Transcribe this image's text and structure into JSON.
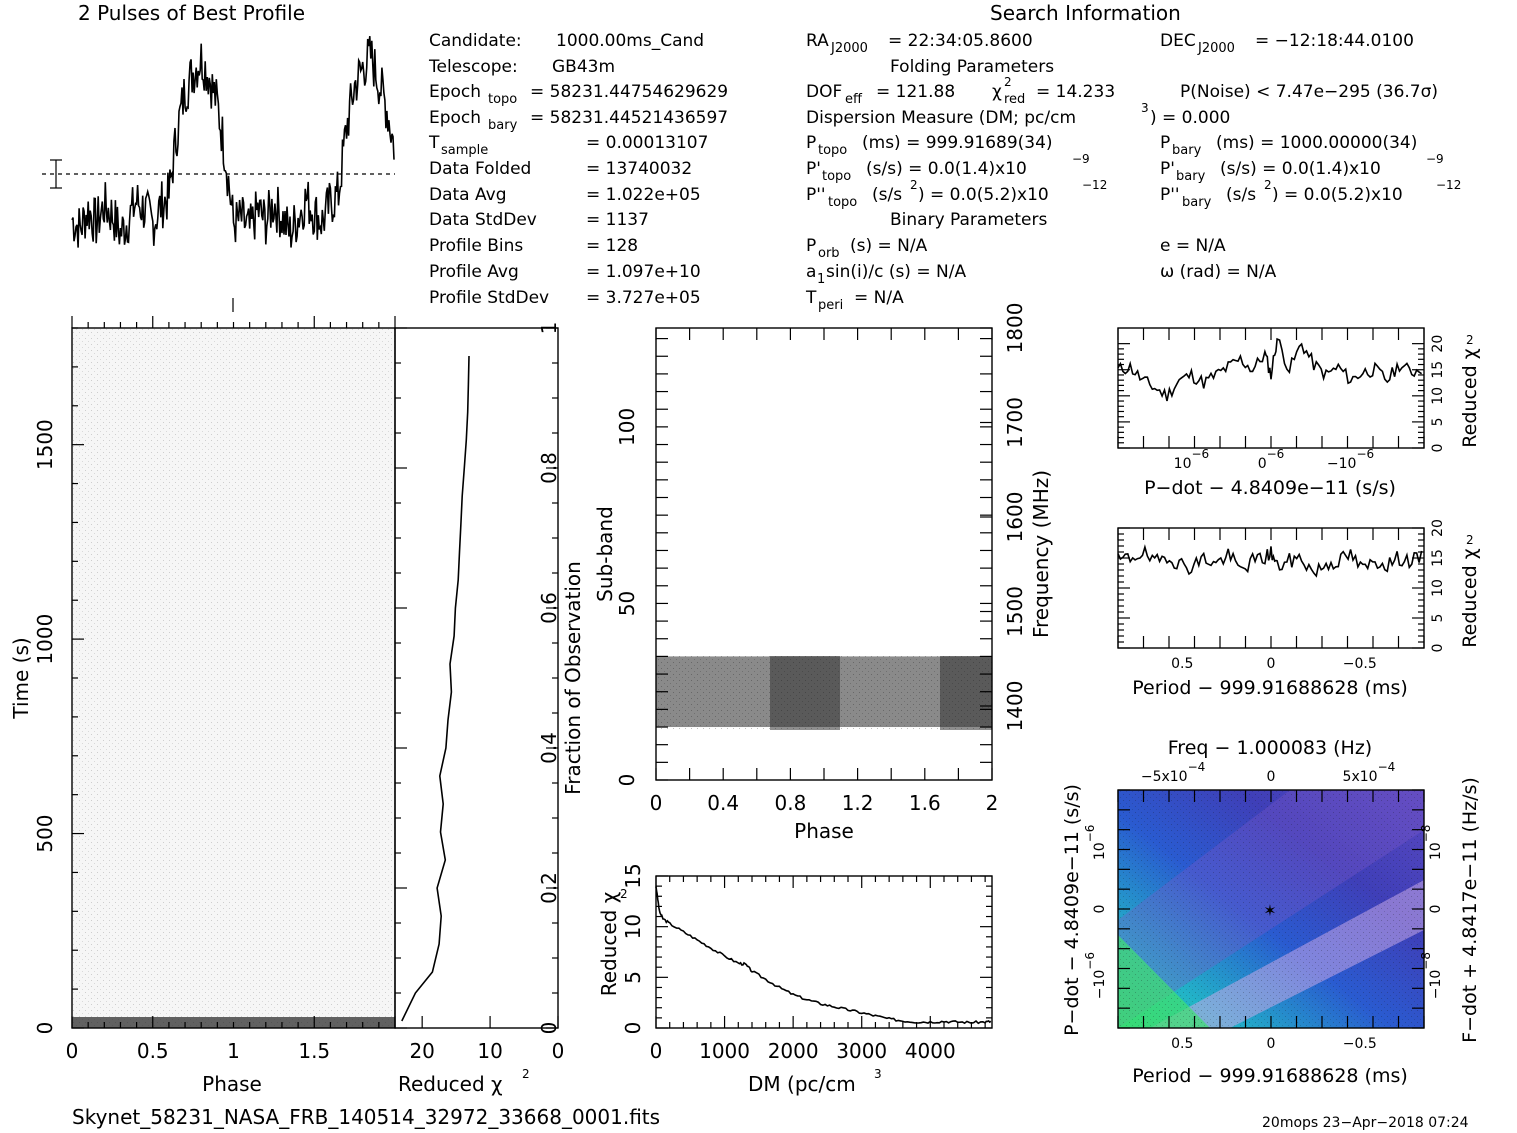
{
  "header": {
    "profile_title": "2 Pulses of Best Profile",
    "search_title": "Search Information",
    "folding_title": "Folding Parameters",
    "binary_title": "Binary Parameters"
  },
  "info": {
    "candidate_label": "Candidate:",
    "candidate": "1000.00ms_Cand",
    "telescope_label": "Telescope:",
    "telescope": "GB43m",
    "epoch_topo_label": "Epoch",
    "epoch_topo_sub": "topo",
    "epoch_topo": "= 58231.44754629629",
    "epoch_bary_label": "Epoch",
    "epoch_bary_sub": "bary",
    "epoch_bary": "= 58231.44521436597",
    "tsample_label": "T",
    "tsample_sub": "sample",
    "tsample": "=   0.00013107",
    "data_folded_label": "Data Folded",
    "data_folded": "=   13740032",
    "data_avg_label": "Data Avg",
    "data_avg": "=   1.022e+05",
    "data_std_label": "Data StdDev",
    "data_std": "=   1137",
    "profile_bins_label": "Profile Bins",
    "profile_bins": "=   128",
    "profile_avg_label": "Profile Avg",
    "profile_avg": "=   1.097e+10",
    "profile_std_label": "Profile StdDev",
    "profile_std": "=   3.727e+05"
  },
  "search": {
    "ra_label": "RA",
    "ra_sub": "J2000",
    "ra": "= 22:34:05.8600",
    "dec_label": "DEC",
    "dec_sub": "J2000",
    "dec": "= −12:18:44.0100",
    "dof_label": "DOF",
    "dof_sub": "eff",
    "dof": "= 121.88",
    "chi_label": "χ",
    "chi_sup": "2",
    "chi_sub": "red",
    "chi": "= 14.233",
    "pnoise": "P(Noise) < 7.47e−295   (36.7σ)",
    "dm": "Dispersion Measure (DM; pc/cm",
    "dm_sup": "3",
    "dm_val": ") = 0.000",
    "ptopo_label": "P",
    "ptopo_sub": "topo",
    "ptopo": "(ms)  =  999.91689(34)",
    "pbary_label": "P",
    "pbary_sub": "bary",
    "pbary": "(ms)  =  1000.00000(34)",
    "pdtopo_label": "P'",
    "pdtopo_sub": "topo",
    "pdtopo": "(s/s) = 0.0(1.4)x10",
    "pdtopo_sup": "−9",
    "pdbary_label": "P'",
    "pdbary_sub": "bary",
    "pdbary": "(s/s) = 0.0(1.4)x10",
    "pdbary_sup": "−9",
    "pddtopo_label": "P''",
    "pddtopo_sub": "topo",
    "pddtopo": "(s/s",
    "pddtopo_sup1": "2",
    "pddtopo_rest": ") = 0.0(5.2)x10",
    "pddtopo_sup2": "−12",
    "pddbary_label": "P''",
    "pddbary_sub": "bary",
    "pddbary": "(s/s",
    "pddbary_sup1": "2",
    "pddbary_rest": ") = 0.0(5.2)x10",
    "pddbary_sup2": "−12",
    "porb_label": "P",
    "porb_sub": "orb",
    "porb": "(s) = N/A",
    "ecc": "e = N/A",
    "a1": "a",
    "a1_sub": "1",
    "a1_rest": "sin(i)/c (s) = N/A",
    "omega": "ω (rad) = N/A",
    "tperi_label": "T",
    "tperi_sub": "peri",
    "tperi": "= N/A"
  },
  "footer": {
    "filename": "Skynet_58231_NASA_FRB_140514_32972_33668_0001.fits",
    "stamp": "20mops 23−Apr−2018 07:24"
  },
  "chart_data": [
    {
      "type": "line",
      "name_on_chart": "2 Pulses of Best Profile",
      "x": [
        0,
        0.05,
        0.1,
        0.15,
        0.2,
        0.25,
        0.3,
        0.35,
        0.4,
        0.45,
        0.5,
        0.55,
        0.6,
        0.65,
        0.7,
        0.75,
        0.8,
        0.85,
        0.9,
        0.95,
        1.0,
        1.05,
        1.1,
        1.15,
        1.2,
        1.25,
        1.3,
        1.35,
        1.4,
        1.45,
        1.5,
        1.55,
        1.6,
        1.65,
        1.7,
        1.75,
        1.8,
        1.85,
        1.9,
        1.95,
        2.0
      ],
      "y": [
        0.22,
        0.18,
        0.26,
        0.2,
        0.28,
        0.24,
        0.16,
        0.22,
        0.3,
        0.26,
        0.2,
        0.28,
        0.32,
        0.6,
        0.78,
        0.86,
        0.92,
        0.84,
        0.72,
        0.5,
        0.2,
        0.22,
        0.17,
        0.26,
        0.21,
        0.29,
        0.23,
        0.16,
        0.23,
        0.31,
        0.25,
        0.21,
        0.29,
        0.33,
        0.62,
        0.8,
        0.88,
        0.93,
        0.82,
        0.7,
        0.52
      ]
    },
    {
      "type": "heatmap",
      "xlabel": "Phase",
      "ylabel": "Time (s)",
      "xticks": [
        "0",
        "0.5",
        "1",
        "1.5"
      ],
      "yticks": [
        "0",
        "500",
        "1000",
        "1500"
      ],
      "xlim": [
        0,
        2
      ],
      "ylim": [
        0,
        1800
      ]
    },
    {
      "type": "line",
      "xlabel": "Reduced χ",
      "xlabel_sup": "2",
      "ylabel": "Fraction of Observation",
      "xticks": [
        "20",
        "10",
        "0"
      ],
      "yticks": [
        "0",
        "0.2",
        "0.4",
        "0.6",
        "0.8",
        "1"
      ],
      "xlim": [
        24,
        0
      ],
      "ylim": [
        0,
        1
      ],
      "x": [
        23,
        21,
        18.5,
        17.5,
        17.2,
        17.8,
        16.6,
        17.3,
        16.9,
        17.4,
        16.5,
        16.2,
        15.7,
        15.9,
        15.3,
        15.1,
        14.7,
        14.5,
        14.3,
        14.1,
        13.8,
        13.5,
        13.3,
        13.2,
        13.1
      ],
      "y": [
        0.01,
        0.05,
        0.08,
        0.12,
        0.16,
        0.2,
        0.24,
        0.28,
        0.32,
        0.36,
        0.4,
        0.44,
        0.48,
        0.52,
        0.56,
        0.6,
        0.64,
        0.68,
        0.72,
        0.76,
        0.8,
        0.84,
        0.88,
        0.92,
        0.96
      ]
    },
    {
      "type": "heatmap",
      "xlabel": "Phase",
      "ylabel": "Sub-band",
      "y2label": "Frequency (MHz)",
      "xticks": [
        "0",
        "0.4",
        "0.8",
        "1.2",
        "1.6",
        "2"
      ],
      "yticks": [
        "0",
        "50",
        "100"
      ],
      "y2ticks": [
        "1400",
        "1500",
        "1600",
        "1700",
        "1800"
      ],
      "xlim": [
        0,
        2
      ],
      "ylim": [
        0,
        128
      ],
      "band_rows": [
        15,
        35
      ]
    },
    {
      "type": "line",
      "xlabel": "DM (pc/cm",
      "xlabel_sup": "3",
      "ylabel": "Reduced χ",
      "ylabel_sup": "2",
      "xticks": [
        "0",
        "1000",
        "2000",
        "3000",
        "4000"
      ],
      "yticks": [
        "0",
        "5",
        "10",
        "15"
      ],
      "xlim": [
        0,
        4900
      ],
      "ylim": [
        0,
        15
      ],
      "x": [
        0,
        50,
        100,
        200,
        400,
        600,
        800,
        1000,
        1200,
        1300,
        1400,
        1600,
        1800,
        2000,
        2200,
        2400,
        2600,
        2800,
        3000,
        3200,
        3400,
        3600,
        3800,
        4000,
        4200,
        4400,
        4600,
        4800,
        4900
      ],
      "y": [
        14,
        11.5,
        10.8,
        10.3,
        9.5,
        8.7,
        7.9,
        7.1,
        6.4,
        6.3,
        5.6,
        4.8,
        4.0,
        3.3,
        2.8,
        2.4,
        2.1,
        1.8,
        1.5,
        1.2,
        0.9,
        0.7,
        0.6,
        0.6,
        0.65,
        0.6,
        0.55,
        0.6,
        0.65
      ]
    },
    {
      "type": "line",
      "xlabel": "P−dot − 4.8409e−11 (s/s)",
      "ylabel": "Reduced χ",
      "ylabel_sup": "2",
      "xticks": [
        "10",
        "0",
        "−10"
      ],
      "xtick_sup": "−6",
      "yticks": [
        "0",
        "5",
        "10",
        "15",
        "20"
      ],
      "ylim": [
        0,
        23
      ],
      "x": [
        0,
        0.04,
        0.08,
        0.12,
        0.16,
        0.2,
        0.24,
        0.28,
        0.32,
        0.36,
        0.4,
        0.44,
        0.48,
        0.5,
        0.52,
        0.56,
        0.6,
        0.64,
        0.68,
        0.72,
        0.76,
        0.8,
        0.84,
        0.88,
        0.92,
        0.96,
        1.0
      ],
      "y": [
        15,
        15.5,
        13,
        11.5,
        10,
        13,
        14,
        12.5,
        14,
        15.5,
        17,
        15,
        18,
        14,
        21,
        15,
        20,
        16,
        14,
        15.5,
        13,
        14.5,
        15,
        13,
        16,
        14.5,
        15.5
      ]
    },
    {
      "type": "line",
      "xlabel": "Period − 999.91688628 (ms)",
      "ylabel": "Reduced χ",
      "ylabel_sup": "2",
      "xticks": [
        "0.5",
        "0",
        "−0.5"
      ],
      "yticks": [
        "0",
        "5",
        "10",
        "15",
        "20"
      ],
      "ylim": [
        0,
        20
      ],
      "x": [
        0,
        0.04,
        0.08,
        0.12,
        0.16,
        0.2,
        0.24,
        0.28,
        0.32,
        0.36,
        0.4,
        0.44,
        0.48,
        0.5,
        0.52,
        0.56,
        0.6,
        0.64,
        0.68,
        0.72,
        0.76,
        0.8,
        0.84,
        0.88,
        0.92,
        0.96,
        1.0
      ],
      "y": [
        14.5,
        15,
        16,
        14,
        15.5,
        14,
        13.5,
        15,
        14,
        15.5,
        13,
        14.5,
        15,
        16,
        13.5,
        14.5,
        15,
        12.5,
        14,
        14.5,
        15.5,
        13,
        14.5,
        14,
        15,
        14.5,
        15
      ]
    },
    {
      "type": "heatmap",
      "title": "Freq − 1.000083 (Hz)",
      "xlabel": "Period − 999.91688628 (ms)",
      "ylabel": "P−dot − 4.8409e−11 (s/s)",
      "y2label": "F−dot + 4.8417e−11 (Hz/s)",
      "xticks": [
        "0.5",
        "0",
        "−0.5"
      ],
      "x2ticks": [
        "−5x10",
        "0",
        "5x10"
      ],
      "x2tick_sup": "−4",
      "yticks": [
        "10",
        "0",
        "−10"
      ],
      "ytick_sup": "−6",
      "y2ticks": [
        "10",
        "0",
        "−10"
      ],
      "y2tick_sup": "−8"
    }
  ]
}
